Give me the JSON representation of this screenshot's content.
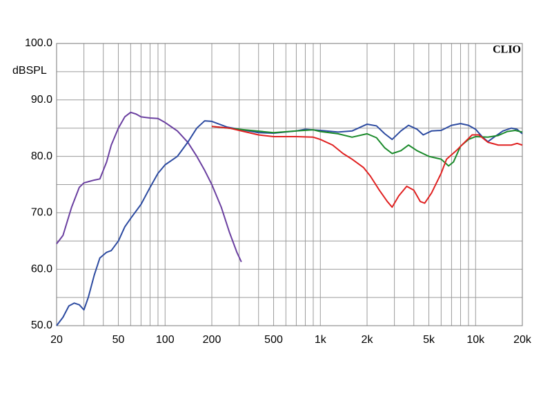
{
  "chart_data": {
    "type": "line",
    "y_label": "dBSPL",
    "annotation": "CLIO",
    "log_x": true,
    "xlim": [
      20,
      20000
    ],
    "ylim": [
      50,
      100
    ],
    "xticks": [
      20,
      50,
      100,
      200,
      500,
      {
        "value": 1000,
        "label": "1k"
      },
      {
        "value": 2000,
        "label": "2k"
      },
      {
        "value": 5000,
        "label": "5k"
      },
      {
        "value": 10000,
        "label": "10k"
      },
      {
        "value": 20000,
        "label": "20k"
      }
    ],
    "yticks": [
      {
        "value": 50,
        "label": "50.0"
      },
      {
        "value": 60,
        "label": "60.0"
      },
      {
        "value": 70,
        "label": "70.0"
      },
      {
        "value": 80,
        "label": "80.0"
      },
      {
        "value": 90,
        "label": "90.0"
      },
      {
        "value": 100,
        "label": "100.0"
      }
    ],
    "xgrid": [
      30,
      40,
      60,
      70,
      80,
      90,
      300,
      400,
      600,
      700,
      800,
      900,
      3000,
      4000,
      6000,
      7000,
      8000,
      9000
    ],
    "ygrid": [
      55,
      65,
      75,
      85,
      95
    ],
    "grid": true,
    "series": [
      {
        "color": "#6a3fa0",
        "x": [
          20,
          22,
          25,
          28,
          30,
          35,
          38,
          42,
          45,
          50,
          55,
          60,
          65,
          70,
          80,
          90,
          100,
          120,
          140,
          160,
          180,
          200,
          230,
          260,
          290,
          310
        ],
        "values": [
          64.5,
          66,
          71,
          74.5,
          75.3,
          75.8,
          76,
          79,
          82,
          85,
          87,
          87.8,
          87.5,
          87,
          86.8,
          86.7,
          86,
          84.5,
          82.5,
          80,
          77.5,
          75,
          71,
          66.5,
          63,
          61.3
        ]
      },
      {
        "color": "#2c4aa0",
        "x": [
          20,
          22,
          24,
          26,
          28,
          30,
          32,
          35,
          38,
          42,
          45,
          50,
          55,
          60,
          70,
          80,
          90,
          100,
          120,
          140,
          160,
          180,
          200,
          250,
          300,
          400,
          500,
          700,
          800,
          1000,
          1300,
          1600,
          2000,
          2300,
          2600,
          2900,
          3300,
          3700,
          4200,
          4600,
          5200,
          6000,
          7000,
          8000,
          9000,
          10000,
          11000,
          12000,
          13000,
          15000,
          17000,
          18500,
          20000
        ],
        "values": [
          50,
          51.5,
          53.5,
          54,
          53.7,
          52.8,
          55,
          59,
          62,
          63,
          63.3,
          65,
          67.5,
          69,
          71.5,
          74.5,
          77,
          78.5,
          80,
          82.5,
          85,
          86.3,
          86.2,
          85.2,
          84.8,
          84.2,
          84.1,
          84.5,
          84.8,
          84.6,
          84.3,
          84.5,
          85.7,
          85.4,
          84,
          83,
          84.5,
          85.5,
          84.8,
          83.8,
          84.5,
          84.6,
          85.5,
          85.8,
          85.5,
          84.8,
          83.5,
          82.6,
          83.3,
          84.5,
          85,
          84.8,
          84
        ]
      },
      {
        "color": "#1a8a2a",
        "x": [
          200,
          300,
          500,
          700,
          900,
          1000,
          1300,
          1600,
          2000,
          2300,
          2600,
          2900,
          3300,
          3700,
          4200,
          5000,
          6000,
          6700,
          7200,
          8000,
          9000,
          10000,
          12000,
          14000,
          16000,
          18000,
          20000
        ],
        "values": [
          85.3,
          84.8,
          84.2,
          84.5,
          84.7,
          84.4,
          84,
          83.4,
          84,
          83.3,
          81.5,
          80.5,
          81,
          82,
          81,
          80,
          79.5,
          78.3,
          79,
          81.8,
          83,
          83.5,
          83.4,
          83.7,
          84.4,
          84.6,
          84.3
        ]
      },
      {
        "color": "#e02020",
        "x": [
          200,
          260,
          300,
          400,
          500,
          700,
          900,
          1000,
          1200,
          1400,
          1600,
          1900,
          2100,
          2400,
          2700,
          2900,
          3200,
          3600,
          4000,
          4400,
          4700,
          5200,
          6000,
          6500,
          7500,
          8500,
          9500,
          10500,
          12000,
          14000,
          17000,
          18500,
          20000
        ],
        "values": [
          85.3,
          85,
          84.6,
          83.8,
          83.5,
          83.5,
          83.4,
          83,
          82,
          80.5,
          79.5,
          78,
          76.5,
          74,
          72,
          71,
          73,
          74.7,
          74,
          72,
          71.7,
          73.5,
          77,
          79.5,
          81,
          82.5,
          83.8,
          83.8,
          82.5,
          82,
          82,
          82.3,
          82
        ]
      }
    ]
  }
}
